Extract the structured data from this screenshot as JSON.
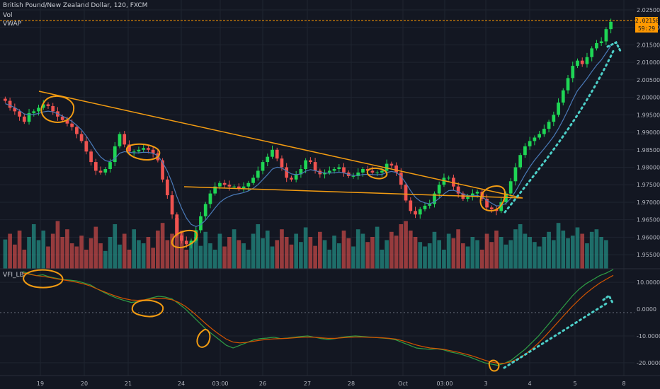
{
  "header": {
    "title": "British Pound/New Zealand Dollar, 120, FXCM",
    "vol_label": "Vol",
    "vwap_label": "VWAP",
    "vfi_label": "VFI_LB"
  },
  "price_tag": {
    "value": "2.02156",
    "countdown": "59:29"
  },
  "colors": {
    "background": "#131722",
    "up": "#26a69a",
    "up_candle": "#1fd655",
    "down": "#ef5350",
    "annotation": "#f39c12",
    "dotted_arrow": "#4dd0c9",
    "vwap": "#4a7ab8",
    "price_line": "#ff9800",
    "grid": "#1f2430"
  },
  "chart_data": [
    {
      "type": "candlestick",
      "title": "British Pound/New Zealand Dollar, 120, FXCM",
      "ylim": [
        1.953,
        2.025
      ],
      "y_ticks": [
        "2.02500",
        "2.02000",
        "2.01500",
        "2.01000",
        "2.00500",
        "2.00000",
        "1.99500",
        "1.99000",
        "1.98500",
        "1.98000",
        "1.97500",
        "1.97000",
        "1.96500",
        "1.96000",
        "1.95500"
      ],
      "x_ticks": [
        "19",
        "20",
        "21",
        "24",
        "03:00",
        "26",
        "27",
        "28",
        "Oct",
        "03:00",
        "3",
        "4",
        "5",
        "8"
      ],
      "closes": [
        1.999,
        1.997,
        1.996,
        1.9945,
        1.993,
        1.9955,
        1.996,
        1.997,
        1.998,
        1.9975,
        1.996,
        1.9945,
        1.9935,
        1.9925,
        1.9915,
        1.9895,
        1.9875,
        1.9845,
        1.9815,
        1.979,
        1.9785,
        1.9795,
        1.9815,
        1.986,
        1.9895,
        1.9865,
        1.9845,
        1.9845,
        1.985,
        1.9855,
        1.985,
        1.984,
        1.982,
        1.9765,
        1.972,
        1.9665,
        1.9605,
        1.959,
        1.958,
        1.959,
        1.962,
        1.966,
        1.9695,
        1.9725,
        1.9745,
        1.9755,
        1.975,
        1.9745,
        1.9745,
        1.974,
        1.9745,
        1.9755,
        1.977,
        1.979,
        1.9815,
        1.983,
        1.985,
        1.9825,
        1.98,
        1.977,
        1.9765,
        1.978,
        1.9795,
        1.982,
        1.9815,
        1.979,
        1.978,
        1.9785,
        1.979,
        1.9795,
        1.98,
        1.9785,
        1.9775,
        1.9775,
        1.9785,
        1.9795,
        1.979,
        1.9785,
        1.9785,
        1.979,
        1.981,
        1.9805,
        1.9785,
        1.975,
        1.9705,
        1.9675,
        1.9665,
        1.968,
        1.969,
        1.9695,
        1.9725,
        1.975,
        1.977,
        1.977,
        1.9745,
        1.9725,
        1.971,
        1.9715,
        1.9725,
        1.973,
        1.971,
        1.9685,
        1.968,
        1.9675,
        1.97,
        1.9725,
        1.976,
        1.98,
        1.9835,
        1.986,
        1.9875,
        1.9885,
        1.9895,
        1.991,
        1.993,
        1.995,
        1.9985,
        2.002,
        2.0055,
        2.009,
        2.0105,
        2.0095,
        2.0115,
        2.014,
        2.0155,
        2.016,
        2.0195,
        2.0216
      ],
      "volumes": [
        0.46,
        0.55,
        0.38,
        0.6,
        0.3,
        0.5,
        0.7,
        0.45,
        0.6,
        0.35,
        0.55,
        0.75,
        0.5,
        0.62,
        0.4,
        0.35,
        0.52,
        0.3,
        0.48,
        0.66,
        0.4,
        0.28,
        0.5,
        0.7,
        0.38,
        0.55,
        0.3,
        0.62,
        0.45,
        0.4,
        0.5,
        0.33,
        0.6,
        0.72,
        0.45,
        0.55,
        0.8,
        0.6,
        0.3,
        0.42,
        0.5,
        0.36,
        0.58,
        0.4,
        0.3,
        0.55,
        0.35,
        0.5,
        0.62,
        0.45,
        0.4,
        0.3,
        0.55,
        0.7,
        0.48,
        0.6,
        0.35,
        0.45,
        0.62,
        0.5,
        0.38,
        0.55,
        0.42,
        0.65,
        0.5,
        0.36,
        0.58,
        0.45,
        0.3,
        0.52,
        0.4,
        0.6,
        0.48,
        0.35,
        0.62,
        0.55,
        0.42,
        0.5,
        0.66,
        0.3,
        0.45,
        0.58,
        0.52,
        0.7,
        0.75,
        0.6,
        0.5,
        0.42,
        0.35,
        0.4,
        0.58,
        0.45,
        0.3,
        0.55,
        0.48,
        0.62,
        0.4,
        0.35,
        0.5,
        0.45,
        0.3,
        0.55,
        0.42,
        0.6,
        0.5,
        0.38,
        0.45,
        0.62,
        0.7,
        0.55,
        0.5,
        0.42,
        0.35,
        0.5,
        0.58,
        0.45,
        0.72,
        0.6,
        0.48,
        0.52,
        0.65,
        0.55,
        0.4,
        0.58,
        0.62,
        0.5,
        0.45
      ],
      "vwap_offset": -0.0008
    },
    {
      "type": "line",
      "title": "VFI_LB",
      "ylim": [
        -24,
        14
      ],
      "y_ticks": [
        "10.0000",
        "0.0000",
        "-10.0000",
        "-20.0000"
      ],
      "series": [
        {
          "values": [
            14,
            13.2,
            12.5,
            12.8,
            12,
            11.5,
            11,
            10.8,
            10.5,
            9.8,
            9,
            7.5,
            6.2,
            5,
            4,
            3.2,
            2.5,
            2.8,
            3.5,
            4.2,
            4.8,
            4.5,
            3.8,
            2,
            0,
            -2.5,
            -5,
            -7.5,
            -9.5,
            -11.5,
            -13.5,
            -14.5,
            -13.5,
            -12.5,
            -11.5,
            -11,
            -10.8,
            -10.5,
            -11,
            -10.8,
            -10.5,
            -10.2,
            -10,
            -10.5,
            -11,
            -11.3,
            -11,
            -10.5,
            -10.2,
            -10,
            -10.2,
            -10.4,
            -10.6,
            -10.8,
            -11,
            -11.5,
            -12.5,
            -13.5,
            -14.5,
            -14.8,
            -15,
            -14.8,
            -15.2,
            -16,
            -16.5,
            -17.2,
            -18,
            -19,
            -20,
            -20.5,
            -21,
            -20.2,
            -19,
            -17,
            -15,
            -12.5,
            -10,
            -7,
            -4,
            -1,
            2,
            5,
            7.5,
            9.5,
            11,
            12.5,
            13.5,
            14.8
          ]
        },
        {
          "values": [
            13.5,
            13,
            12.5,
            12.2,
            11.8,
            11.3,
            10.9,
            10.5,
            10,
            9.4,
            8.6,
            7.5,
            6.5,
            5.5,
            4.6,
            3.9,
            3.4,
            3.3,
            3.5,
            3.8,
            4,
            3.9,
            3.5,
            2.5,
            1,
            -1,
            -3.2,
            -5.5,
            -7.6,
            -9.5,
            -11.2,
            -12.3,
            -12.6,
            -12.4,
            -12,
            -11.6,
            -11.3,
            -11.1,
            -11,
            -10.9,
            -10.7,
            -10.5,
            -10.4,
            -10.5,
            -10.7,
            -10.9,
            -10.9,
            -10.7,
            -10.5,
            -10.4,
            -10.4,
            -10.5,
            -10.6,
            -10.7,
            -10.9,
            -11.2,
            -11.8,
            -12.6,
            -13.4,
            -14,
            -14.5,
            -14.7,
            -15,
            -15.5,
            -16,
            -16.6,
            -17.3,
            -18.1,
            -19,
            -19.7,
            -20.2,
            -20.2,
            -19.6,
            -18.5,
            -16.9,
            -14.9,
            -12.6,
            -10,
            -7.2,
            -4.4,
            -1.6,
            1.1,
            3.6,
            5.9,
            7.9,
            9.7,
            11.2,
            12.6
          ]
        }
      ]
    }
  ]
}
